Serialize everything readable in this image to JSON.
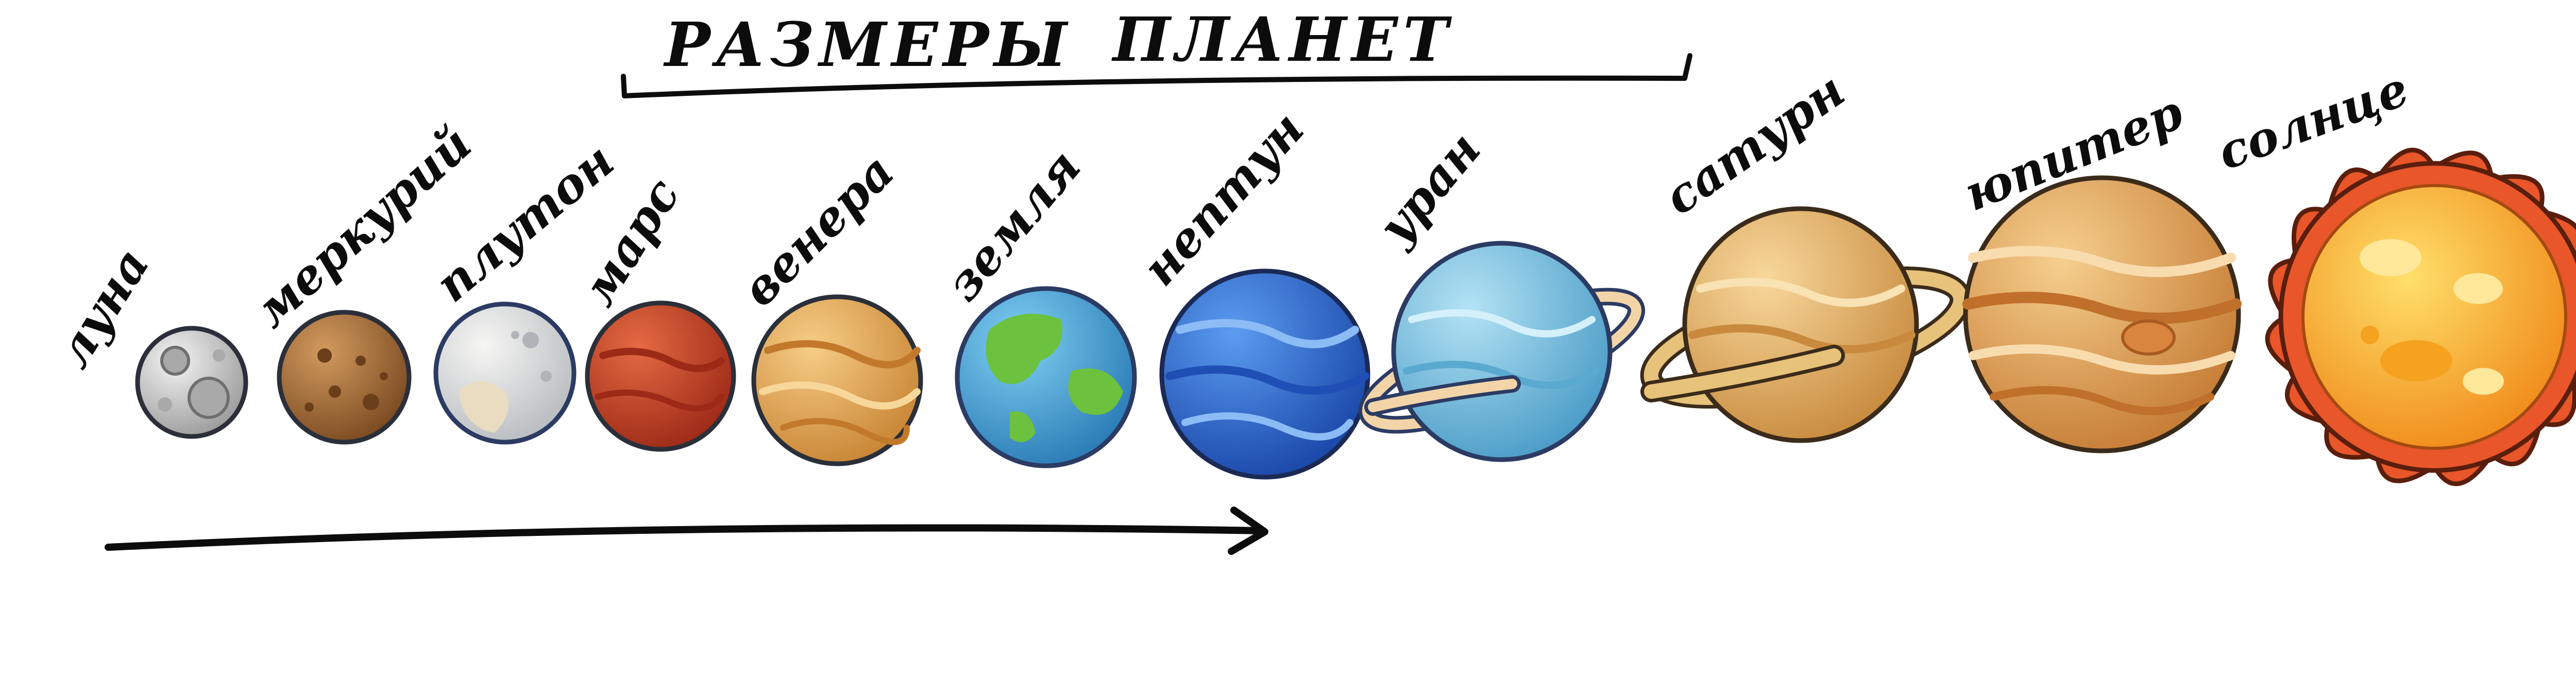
{
  "title": {
    "word1": "РАЗМЕРЫ",
    "word2": "ПЛАНЕТ"
  },
  "labels": {
    "moon": "луна",
    "mercury": "меркурий",
    "pluto": "плутон",
    "mars": "марс",
    "venus": "венера",
    "earth": "земля",
    "neptune": "нептун",
    "uranus": "уран",
    "saturn": "сатурн",
    "jupiter": "юпитер",
    "sun": "солнце"
  },
  "order": [
    "moon",
    "mercury",
    "pluto",
    "mars",
    "venus",
    "earth",
    "neptune",
    "uranus",
    "saturn",
    "jupiter",
    "sun"
  ],
  "colors": {
    "ink": "#0c0c0c",
    "moon": "#d9d9d9",
    "mercury": "#a86a33",
    "pluto": "#e2e3e0",
    "mars": "#c9442a",
    "venus": "#e6a95a",
    "earth_ocean": "#3d9fd8",
    "earth_land": "#6cc13e",
    "neptune": "#2f6fd8",
    "uranus": "#7fc5e6",
    "saturn": "#e6b56a",
    "jupiter": "#e6a35a",
    "sun_core": "#f7b52a",
    "sun_flare": "#e8562a"
  }
}
